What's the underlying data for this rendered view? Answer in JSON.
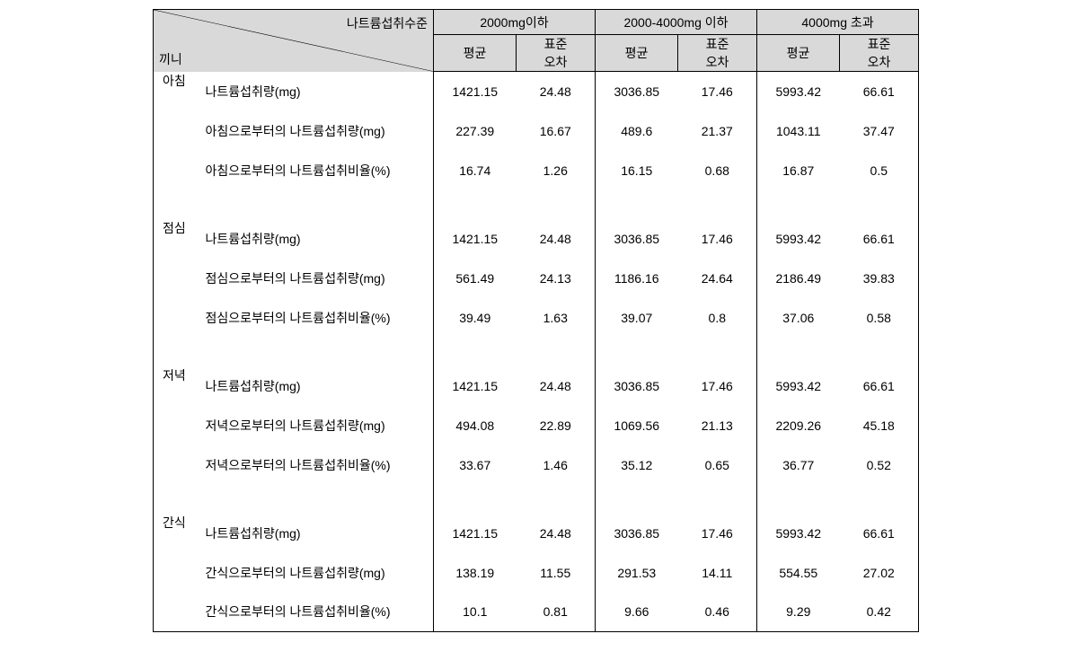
{
  "type": "table",
  "header": {
    "diagonal_top_right": "나트륨섭취수준",
    "diagonal_bottom_left": "끼니",
    "groups": [
      "2000mg이하",
      "2000-4000mg 이하",
      "4000mg 초과"
    ],
    "sub": [
      "평균",
      "표준\n오차"
    ]
  },
  "meals": [
    {
      "name": "아침",
      "rows": [
        {
          "label": "나트륨섭취량(mg)",
          "v": [
            "1421.15",
            "24.48",
            "3036.85",
            "17.46",
            "5993.42",
            "66.61"
          ]
        },
        {
          "label": "아침으로부터의 나트륨섭취량(mg)",
          "v": [
            "227.39",
            "16.67",
            "489.6",
            "21.37",
            "1043.11",
            "37.47"
          ]
        },
        {
          "label": "아침으로부터의 나트륨섭취비율(%)",
          "v": [
            "16.74",
            "1.26",
            "16.15",
            "0.68",
            "16.87",
            "0.5"
          ]
        }
      ]
    },
    {
      "name": "점심",
      "rows": [
        {
          "label": "나트륨섭취량(mg)",
          "v": [
            "1421.15",
            "24.48",
            "3036.85",
            "17.46",
            "5993.42",
            "66.61"
          ]
        },
        {
          "label": "점심으로부터의 나트륨섭취량(mg)",
          "v": [
            "561.49",
            "24.13",
            "1186.16",
            "24.64",
            "2186.49",
            "39.83"
          ]
        },
        {
          "label": "점심으로부터의 나트륨섭취비율(%)",
          "v": [
            "39.49",
            "1.63",
            "39.07",
            "0.8",
            "37.06",
            "0.58"
          ]
        }
      ]
    },
    {
      "name": "저녁",
      "rows": [
        {
          "label": "나트륨섭취량(mg)",
          "v": [
            "1421.15",
            "24.48",
            "3036.85",
            "17.46",
            "5993.42",
            "66.61"
          ]
        },
        {
          "label": "저녁으로부터의 나트륨섭취량(mg)",
          "v": [
            "494.08",
            "22.89",
            "1069.56",
            "21.13",
            "2209.26",
            "45.18"
          ]
        },
        {
          "label": "저녁으로부터의 나트륨섭취비율(%)",
          "v": [
            "33.67",
            "1.46",
            "35.12",
            "0.65",
            "36.77",
            "0.52"
          ]
        }
      ]
    },
    {
      "name": "간식",
      "rows": [
        {
          "label": "나트륨섭취량(mg)",
          "v": [
            "1421.15",
            "24.48",
            "3036.85",
            "17.46",
            "5993.42",
            "66.61"
          ]
        },
        {
          "label": "간식으로부터의 나트륨섭취량(mg)",
          "v": [
            "138.19",
            "11.55",
            "291.53",
            "14.11",
            "554.55",
            "27.02"
          ]
        },
        {
          "label": "간식으로부터의 나트륨섭취비율(%)",
          "v": [
            "10.1",
            "0.81",
            "9.66",
            "0.46",
            "9.29",
            "0.42"
          ]
        }
      ]
    }
  ],
  "colors": {
    "header_bg": "#d9d9d9",
    "border": "#000000",
    "background": "#ffffff",
    "text": "#000000"
  },
  "fontsize": {
    "body": 14
  }
}
